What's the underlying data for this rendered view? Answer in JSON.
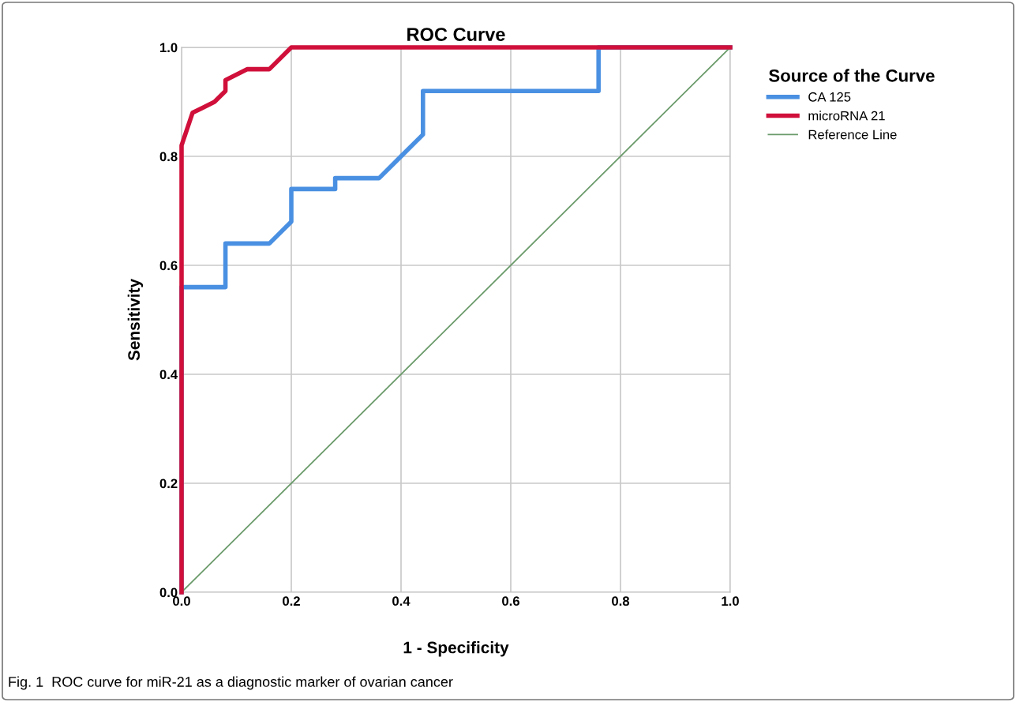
{
  "chart_data": {
    "type": "line",
    "title": "ROC Curve",
    "xlabel": "1 - Specificity",
    "ylabel": "Sensitivity",
    "legend_title": "Source of the Curve",
    "series": [
      {
        "name": "CA 125",
        "color": "#4a90e2",
        "x": [
          0,
          0,
          0.08,
          0.08,
          0.16,
          0.2,
          0.2,
          0.28,
          0.28,
          0.36,
          0.44,
          0.44,
          0.76,
          0.76,
          1.0
        ],
        "values": [
          0,
          0.56,
          0.56,
          0.64,
          0.64,
          0.68,
          0.74,
          0.74,
          0.76,
          0.76,
          0.84,
          0.92,
          0.92,
          1.0,
          1.0
        ]
      },
      {
        "name": "microRNA 21",
        "color": "#d0103a",
        "x": [
          0,
          0,
          0.02,
          0.06,
          0.08,
          0.08,
          0.12,
          0.16,
          0.2,
          1.0
        ],
        "values": [
          0,
          0.82,
          0.88,
          0.9,
          0.92,
          0.94,
          0.96,
          0.96,
          1.0,
          1.0
        ]
      },
      {
        "name": "Reference Line",
        "color": "#6a9a6a",
        "x": [
          0,
          1.0
        ],
        "values": [
          0,
          1.0
        ]
      }
    ],
    "xlim": [
      0,
      1.0
    ],
    "ylim": [
      0,
      1.0
    ],
    "xticks": [
      {
        "value": 0,
        "label": "0.0"
      },
      0.2,
      0.4,
      0.6,
      0.8,
      {
        "value": 1.0,
        "label": "1.0"
      }
    ],
    "yticks": [
      {
        "value": 0,
        "label": "0.0"
      },
      0.2,
      0.4,
      0.6,
      0.8,
      {
        "value": 1.0,
        "label": "1.0"
      }
    ],
    "grid": true,
    "legend": "right",
    "marker": "none",
    "line_style": "solid",
    "annotations": [
      "Fig. 1  ROC curve for miR-21 as a diagnostic marker of ovarian cancer"
    ]
  }
}
